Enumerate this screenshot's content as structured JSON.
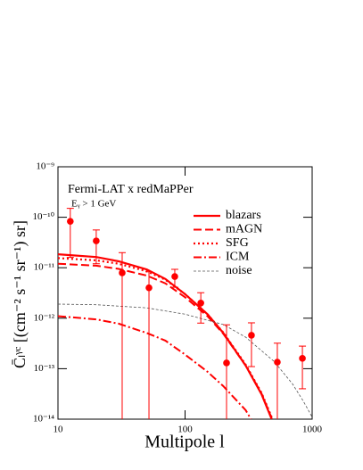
{
  "chart_data": {
    "type": "line",
    "xlabel": "Multipole l",
    "ylabel": "C̄ₗᵞᶜ [(cm⁻² s⁻¹ sr⁻¹) sr]",
    "annotations": [
      "Fermi-LAT x redMaPPer",
      "Eᵧ > 1 GeV"
    ],
    "xscale": "log",
    "yscale": "log",
    "xlim": [
      10,
      1000
    ],
    "ylim": [
      1e-14,
      1e-09
    ],
    "xticks": [
      10,
      100,
      1000
    ],
    "yticks": [
      {
        "value": 1e-14,
        "label": "10⁻¹⁴"
      },
      {
        "value": 1e-13,
        "label": "10⁻¹³"
      },
      {
        "value": 1e-12,
        "label": "10⁻¹²"
      },
      {
        "value": 1e-11,
        "label": "10⁻¹¹"
      },
      {
        "value": 1e-10,
        "label": "10⁻¹⁰"
      },
      {
        "value": 1e-09,
        "label": "10⁻⁹"
      }
    ],
    "legend": "upper right",
    "series": [
      {
        "name": "blazars",
        "color": "#ff0000",
        "dash": "solid",
        "x": [
          10,
          20,
          30,
          50,
          70,
          100,
          150,
          200,
          300,
          400,
          480
        ],
        "values": [
          1.85e-11,
          1.63e-11,
          1.34e-11,
          9.2e-12,
          6e-12,
          3e-12,
          1.2e-12,
          5.1e-13,
          1.15e-13,
          3.1e-14,
          1e-14
        ]
      },
      {
        "name": "mAGN",
        "color": "#ff0000",
        "dash": "dashed",
        "x": [
          10,
          20,
          30,
          50,
          70,
          100,
          150,
          200,
          300,
          400,
          480
        ],
        "values": [
          1.2e-11,
          1.1e-11,
          9.5e-12,
          7e-12,
          4.9e-12,
          2.6e-12,
          1.1e-12,
          4.9e-13,
          1.15e-13,
          3.2e-14,
          1.05e-14
        ]
      },
      {
        "name": "SFG",
        "color": "#ff0000",
        "dash": "dotted",
        "x": [
          10,
          20,
          30,
          50,
          70,
          100,
          150,
          200,
          300,
          400,
          480
        ],
        "values": [
          1.55e-11,
          1.4e-11,
          1.2e-11,
          8.5e-12,
          5.8e-12,
          3e-12,
          1.2e-12,
          5.2e-13,
          1.2e-13,
          3.3e-14,
          1.1e-14
        ]
      },
      {
        "name": "ICM",
        "color": "#ff0000",
        "dash": "dashdot",
        "x": [
          10,
          20,
          30,
          50,
          70,
          100,
          150,
          200,
          300,
          330
        ],
        "values": [
          1.1e-12,
          9.5e-13,
          7.8e-13,
          5.1e-13,
          3.6e-13,
          1.9e-13,
          8.7e-14,
          4.5e-14,
          1.5e-14,
          1e-14
        ]
      },
      {
        "name": "noise",
        "color": "#555555",
        "dash": "thin-dashed",
        "x": [
          10,
          20,
          50,
          100,
          200,
          300,
          500,
          700,
          850,
          1000
        ],
        "values": [
          1.9e-12,
          1.85e-12,
          1.6e-12,
          1.2e-12,
          7.5e-13,
          4.2e-13,
          1.4e-13,
          5e-14,
          2.3e-14,
          1.1e-14
        ]
      }
    ],
    "points": {
      "color": "#ff0000",
      "x": [
        12.5,
        20,
        32,
        52,
        83,
        133,
        212,
        333,
        532,
        838
      ],
      "values": [
        8.3e-11,
        3.4e-11,
        7.9e-12,
        4e-12,
        6.7e-12,
        2e-12,
        1.3e-13,
        4.6e-13,
        1.35e-13,
        1.6e-13
      ],
      "errors": [
        6.7e-11,
        2.2e-11,
        1.2e-11,
        4.3e-12,
        2.6e-12,
        1.2e-12,
        6.1e-13,
        3.5e-13,
        1.85e-13,
        1.2e-13
      ]
    }
  }
}
